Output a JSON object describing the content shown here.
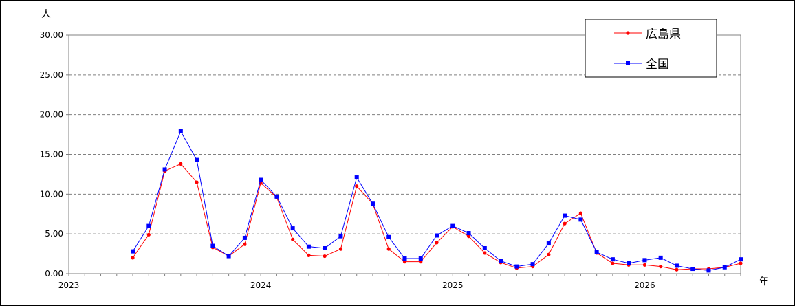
{
  "chart_data": {
    "type": "line",
    "y_unit_label": "人",
    "x_unit_label": "年",
    "ylim": [
      0,
      30
    ],
    "y_ticks": [
      "0.00",
      "5.00",
      "10.00",
      "15.00",
      "20.00",
      "25.00",
      "30.00"
    ],
    "y_tick_values": [
      0,
      5,
      10,
      15,
      20,
      25,
      30
    ],
    "x_tick_labels": [
      "2023",
      "2024",
      "2025",
      "2026"
    ],
    "x_tick_index": [
      0,
      12,
      24,
      36
    ],
    "x_count": 43,
    "grid": "horizontal-dashed",
    "legend_position": "top-right",
    "series": [
      {
        "name": "広島県",
        "color": "#ff0000",
        "marker": "circle",
        "start_index": 4,
        "values": [
          2.0,
          4.9,
          12.9,
          13.8,
          11.5,
          3.3,
          2.2,
          3.7,
          11.4,
          9.6,
          4.3,
          2.3,
          2.2,
          3.1,
          11.0,
          8.8,
          3.1,
          1.5,
          1.5,
          3.9,
          5.9,
          4.7,
          2.6,
          1.4,
          0.7,
          0.9,
          2.4,
          6.3,
          7.6,
          2.6,
          1.3,
          1.1,
          1.1,
          0.9,
          0.5,
          0.6,
          0.6,
          0.8,
          1.3
        ]
      },
      {
        "name": "全国",
        "color": "#0000ff",
        "marker": "square",
        "start_index": 4,
        "values": [
          2.8,
          6.0,
          13.1,
          17.9,
          14.3,
          3.5,
          2.2,
          4.5,
          11.8,
          9.7,
          5.7,
          3.4,
          3.2,
          4.7,
          12.1,
          8.8,
          4.6,
          1.9,
          1.9,
          4.8,
          6.0,
          5.1,
          3.2,
          1.6,
          0.9,
          1.2,
          3.8,
          7.3,
          6.8,
          2.7,
          1.8,
          1.3,
          1.7,
          2.0,
          1.0,
          0.6,
          0.4,
          0.8,
          1.8
        ]
      }
    ]
  }
}
